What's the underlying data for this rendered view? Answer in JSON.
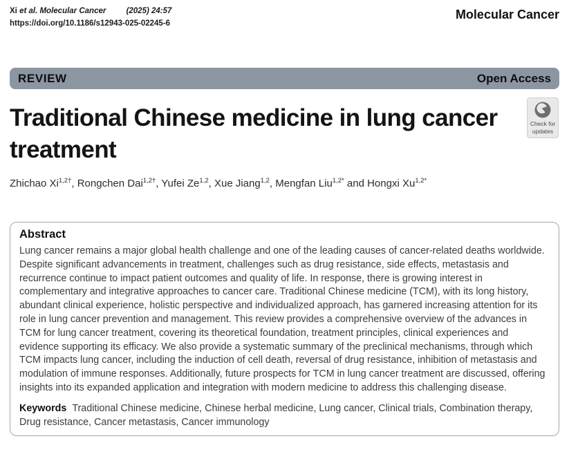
{
  "header": {
    "citation_author": "Xi",
    "citation_italic": "et al. Molecular Cancer",
    "citation_issue": "(2025) 24:57",
    "doi": "https://doi.org/10.1186/s12943-025-02245-6",
    "journal_name": "Molecular Cancer"
  },
  "banner": {
    "article_type": "REVIEW",
    "access_label": "Open Access",
    "bar_color": "#8c96a3"
  },
  "check_badge": {
    "line1": "Check for",
    "line2": "updates",
    "icon": "crossmark-circle-icon",
    "bg_color": "#e9e9e9",
    "icon_color": "#6e6e6e"
  },
  "article": {
    "title_line1": "Traditional Chinese medicine in lung cancer",
    "title_line2": "treatment",
    "authors": [
      {
        "name": "Zhichao Xi",
        "sup": "1,2†",
        "sep": ", "
      },
      {
        "name": "Rongchen Dai",
        "sup": "1,2†",
        "sep": ", "
      },
      {
        "name": "Yufei Ze",
        "sup": "1,2",
        "sep": ", "
      },
      {
        "name": "Xue Jiang",
        "sup": "1,2",
        "sep": ", "
      },
      {
        "name": "Mengfan Liu",
        "sup": "1,2*",
        "sep": " and "
      },
      {
        "name": "Hongxi Xu",
        "sup": "1,2*",
        "sep": ""
      }
    ]
  },
  "abstract": {
    "heading": "Abstract",
    "body": "Lung cancer remains a major global health challenge and one of the leading causes of cancer-related deaths worldwide. Despite significant advancements in treatment, challenges such as drug resistance, side effects, metastasis and recurrence continue to impact patient outcomes and quality of life. In response, there is growing interest in complementary and integrative approaches to cancer care. Traditional Chinese medicine (TCM), with its long history, abundant clinical experience, holistic perspective and individualized approach, has garnered increasing attention for its role in lung cancer prevention and management. This review provides a comprehensive overview of the advances in TCM for lung cancer treatment, covering its theoretical foundation, treatment principles, clinical experiences and evidence supporting its efficacy. We also provide a systematic summary of the preclinical mechanisms, through which TCM impacts lung cancer, including the induction of cell death, reversal of drug resistance, inhibition of metastasis and modulation of immune responses. Additionally, future prospects for TCM in lung cancer treatment are discussed, offering insights into its expanded application and integration with modern medicine to address this challenging disease.",
    "keywords_label": "Keywords",
    "keywords": "Traditional Chinese medicine, Chinese herbal medicine, Lung cancer, Clinical trials, Combination therapy, Drug resistance, Cancer metastasis, Cancer immunology"
  }
}
